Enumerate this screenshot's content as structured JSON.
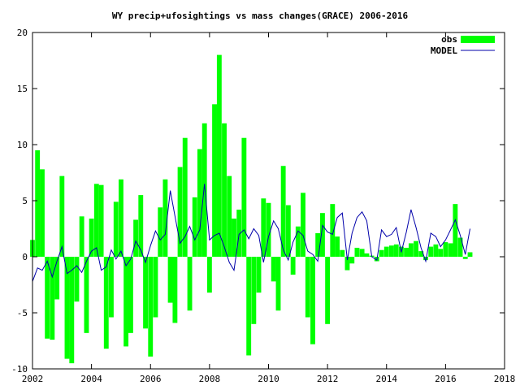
{
  "chart_data": {
    "type": "bar",
    "title": "WY precip+ufosightings vs mass changes(GRACE) 2006-2016",
    "xlabel": "",
    "ylabel": "",
    "xlim": [
      2002,
      2018
    ],
    "ylim": [
      -10,
      20
    ],
    "x_ticks": [
      "2002",
      "2004",
      "2006",
      "2008",
      "2010",
      "2012",
      "2014",
      "2016",
      "2018"
    ],
    "y_ticks": [
      "-10",
      "-5",
      "0",
      "5",
      "10",
      "15",
      "20"
    ],
    "grid": false,
    "legend_position": "top-right",
    "colors": {
      "obs": "#00ff00",
      "model": "#0000aa"
    },
    "series": [
      {
        "name": "obs",
        "style": "bars",
        "x": [
          2002.0,
          2002.17,
          2002.33,
          2002.5,
          2002.67,
          2002.83,
          2003.0,
          2003.17,
          2003.33,
          2003.5,
          2003.67,
          2003.83,
          2004.0,
          2004.17,
          2004.33,
          2004.5,
          2004.67,
          2004.83,
          2005.0,
          2005.17,
          2005.33,
          2005.5,
          2005.67,
          2005.83,
          2006.0,
          2006.17,
          2006.33,
          2006.5,
          2006.67,
          2006.83,
          2007.0,
          2007.17,
          2007.33,
          2007.5,
          2007.67,
          2007.83,
          2008.0,
          2008.17,
          2008.33,
          2008.5,
          2008.67,
          2008.83,
          2009.0,
          2009.17,
          2009.33,
          2009.5,
          2009.67,
          2009.83,
          2010.0,
          2010.17,
          2010.33,
          2010.5,
          2010.67,
          2010.83,
          2011.0,
          2011.17,
          2011.33,
          2011.5,
          2011.67,
          2011.83,
          2012.0,
          2012.17,
          2012.33,
          2012.5,
          2012.67,
          2012.83,
          2013.0,
          2013.17,
          2013.33,
          2013.5,
          2013.67,
          2013.83,
          2014.0,
          2014.17,
          2014.33,
          2014.5,
          2014.67,
          2014.83,
          2015.0,
          2015.17,
          2015.33,
          2015.5,
          2015.67,
          2015.83,
          2016.0,
          2016.17,
          2016.33,
          2016.5,
          2016.67,
          2016.83
        ],
        "values": [
          1.5,
          9.5,
          7.8,
          -7.3,
          -7.4,
          -3.8,
          7.2,
          -9.1,
          -9.5,
          -4.0,
          3.6,
          -6.8,
          3.4,
          6.5,
          6.4,
          -8.2,
          -5.4,
          4.9,
          6.9,
          -8.0,
          -6.8,
          3.3,
          5.5,
          -6.4,
          -8.9,
          -5.4,
          4.4,
          6.9,
          -4.1,
          -5.9,
          8.0,
          10.6,
          -4.8,
          5.3,
          9.6,
          11.9,
          -3.2,
          13.6,
          18.0,
          11.9,
          7.2,
          3.4,
          4.2,
          10.6,
          -8.8,
          -6.0,
          -3.2,
          5.2,
          4.8,
          -2.2,
          -4.8,
          8.1,
          4.6,
          -1.6,
          2.7,
          5.7,
          -5.4,
          -7.8,
          2.1,
          3.9,
          -6.0,
          4.7,
          1.8,
          0.6,
          -1.2,
          -0.6,
          0.8,
          0.7,
          0.3,
          0.1,
          -0.4,
          0.6,
          0.9,
          1.0,
          1.1,
          0.9,
          0.8,
          1.2,
          1.4,
          0.5,
          -0.3,
          0.9,
          1.1,
          0.7,
          1.3,
          1.2,
          4.7,
          1.7,
          -0.2,
          0.4
        ]
      },
      {
        "name": "MODEL",
        "style": "line",
        "x": [
          2002.0,
          2002.17,
          2002.33,
          2002.5,
          2002.67,
          2002.83,
          2003.0,
          2003.17,
          2003.33,
          2003.5,
          2003.67,
          2003.83,
          2004.0,
          2004.17,
          2004.33,
          2004.5,
          2004.67,
          2004.83,
          2005.0,
          2005.17,
          2005.33,
          2005.5,
          2005.67,
          2005.83,
          2006.0,
          2006.17,
          2006.33,
          2006.5,
          2006.67,
          2006.83,
          2007.0,
          2007.17,
          2007.33,
          2007.5,
          2007.67,
          2007.83,
          2008.0,
          2008.17,
          2008.33,
          2008.5,
          2008.67,
          2008.83,
          2009.0,
          2009.17,
          2009.33,
          2009.5,
          2009.67,
          2009.83,
          2010.0,
          2010.17,
          2010.33,
          2010.5,
          2010.67,
          2010.83,
          2011.0,
          2011.17,
          2011.33,
          2011.5,
          2011.67,
          2011.83,
          2012.0,
          2012.17,
          2012.33,
          2012.5,
          2012.67,
          2012.83,
          2013.0,
          2013.17,
          2013.33,
          2013.5,
          2013.67,
          2013.83,
          2014.0,
          2014.17,
          2014.33,
          2014.5,
          2014.67,
          2014.83,
          2015.0,
          2015.17,
          2015.33,
          2015.5,
          2015.67,
          2015.83,
          2016.0,
          2016.17,
          2016.33,
          2016.5,
          2016.67,
          2016.83
        ],
        "values": [
          -2.2,
          -1.0,
          -1.2,
          -0.4,
          -1.8,
          -0.4,
          0.9,
          -1.5,
          -1.2,
          -0.8,
          -1.4,
          -0.4,
          0.5,
          0.8,
          -1.2,
          -0.9,
          0.6,
          -0.2,
          0.5,
          -0.8,
          -0.2,
          1.4,
          0.6,
          -0.5,
          1.0,
          2.3,
          1.5,
          2.0,
          5.9,
          3.6,
          1.2,
          1.8,
          2.7,
          1.5,
          2.4,
          6.5,
          1.5,
          1.9,
          2.1,
          0.9,
          -0.5,
          -1.2,
          2.0,
          2.4,
          1.6,
          2.5,
          1.9,
          -0.5,
          1.8,
          3.2,
          2.5,
          0.6,
          -0.3,
          1.3,
          2.3,
          1.9,
          0.5,
          0.2,
          -0.4,
          2.8,
          2.2,
          2.0,
          3.5,
          3.9,
          -0.3,
          2.1,
          3.5,
          4.0,
          3.2,
          0.0,
          -0.3,
          2.4,
          1.8,
          2.0,
          2.6,
          0.4,
          2.2,
          4.2,
          2.6,
          0.8,
          -0.4,
          2.1,
          1.8,
          0.9,
          1.5,
          2.4,
          3.3,
          1.9,
          0.2,
          2.5
        ]
      }
    ]
  }
}
